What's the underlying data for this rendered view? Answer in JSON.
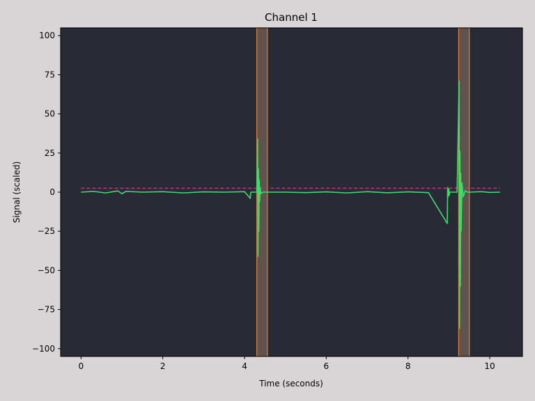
{
  "chart_data": {
    "type": "line",
    "title": "Channel 1",
    "xlabel": "Time (seconds)",
    "ylabel": "Signal (scaled)",
    "xlim": [
      -0.5,
      10.8
    ],
    "ylim": [
      -105,
      105
    ],
    "x_ticks": [
      0,
      2,
      4,
      6,
      8,
      10
    ],
    "y_ticks": [
      100,
      75,
      50,
      25,
      0,
      -25,
      -50,
      -75,
      -100
    ],
    "x_tick_labels": [
      "0",
      "2",
      "4",
      "6",
      "8",
      "10"
    ],
    "y_tick_labels": [
      "100",
      "75",
      "50",
      "25",
      "0",
      "−25",
      "−50",
      "−75",
      "−100"
    ],
    "grid": false,
    "threshold": 2.5,
    "highlighted_regions": [
      {
        "start": 4.3,
        "end": 4.56
      },
      {
        "start": 9.24,
        "end": 9.5
      }
    ],
    "series": [
      {
        "x": [
          0,
          0.3,
          0.6,
          0.9,
          1.0,
          1.1,
          1.5,
          2.0,
          2.5,
          3.0,
          3.5,
          4.0,
          4.14,
          4.15,
          4.16,
          4.3,
          4.32,
          4.33,
          4.34,
          4.35,
          4.36,
          4.37,
          4.38,
          4.4,
          4.45,
          4.5,
          5.0,
          5.5,
          6.0,
          6.5,
          7.0,
          7.5,
          8.0,
          8.5,
          8.96,
          8.97,
          8.98,
          9.0,
          9.01,
          9.02,
          9.04,
          9.2,
          9.25,
          9.26,
          9.27,
          9.28,
          9.29,
          9.3,
          9.32,
          9.35,
          9.4,
          9.45,
          9.5,
          9.8,
          10.0,
          10.25
        ],
        "y": [
          0,
          0.5,
          -0.5,
          0.8,
          -1,
          0.5,
          0,
          0.3,
          -0.5,
          0.2,
          0,
          0.3,
          -4,
          -0.5,
          0,
          0,
          34,
          -41,
          15,
          -25,
          8,
          -6,
          3,
          -1,
          0,
          0,
          0,
          -0.3,
          0.2,
          -0.5,
          0.3,
          -0.4,
          0.2,
          -0.3,
          -20,
          3,
          -3,
          2,
          -2,
          0,
          0,
          0,
          71,
          -87,
          26,
          -60,
          12,
          -25,
          6,
          -3,
          1,
          0,
          0,
          0.3,
          -0.2,
          0
        ],
        "color": "#3ddc6a"
      }
    ],
    "colors": {
      "figure_bg": "#d9d4d5",
      "axes_bg": "#282a36",
      "signal": "#3ddc6a",
      "threshold": "#b03a92",
      "region_fill": "#6a5a52",
      "region_edge": "#e0823a"
    }
  }
}
